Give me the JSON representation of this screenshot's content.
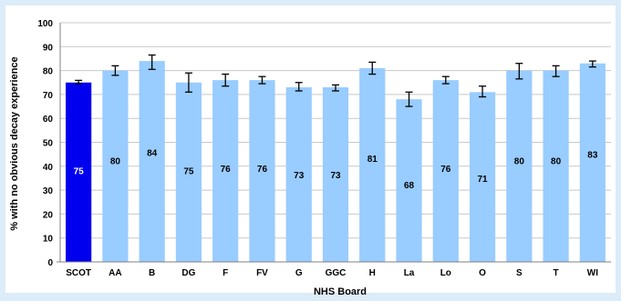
{
  "chart_data": {
    "type": "bar",
    "title": "",
    "xlabel": "NHS Board",
    "ylabel": "% with no obvious decay experience",
    "ylim": [
      0,
      100
    ],
    "yticks": [
      0,
      10,
      20,
      30,
      40,
      50,
      60,
      70,
      80,
      90,
      100
    ],
    "grid": true,
    "categories": [
      "SCOT",
      "AA",
      "B",
      "DG",
      "F",
      "FV",
      "G",
      "GGC",
      "H",
      "La",
      "Lo",
      "O",
      "S",
      "T",
      "WI"
    ],
    "values": [
      75,
      80,
      84,
      75,
      76,
      76,
      73,
      73,
      81,
      68,
      76,
      71,
      80,
      80,
      83
    ],
    "error_low": [
      74.5,
      78,
      80.5,
      71,
      73.5,
      74.5,
      71.5,
      71.5,
      78.5,
      65,
      74.5,
      69,
      76.5,
      77.5,
      81.5
    ],
    "error_high": [
      75.9,
      82,
      86.5,
      79,
      78.5,
      77.5,
      75,
      74,
      83.5,
      71,
      77.5,
      73.5,
      83,
      82,
      84
    ],
    "highlight_category": "SCOT",
    "colors": {
      "highlight_bar": "#0000ee",
      "bar": "#99ccff",
      "error_bar": "#000000",
      "grid": "#c8c8c8",
      "plot_background": "#ffffff",
      "page_background": "#dcecf8"
    }
  }
}
